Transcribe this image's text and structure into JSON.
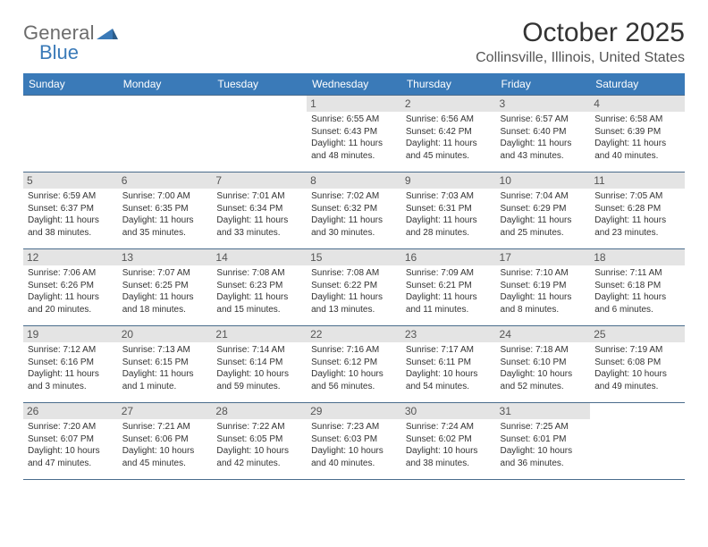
{
  "brand": {
    "word1": "General",
    "word2": "Blue"
  },
  "title": "October 2025",
  "location": "Collinsville, Illinois, United States",
  "style": {
    "header_bg": "#3a7ab8",
    "header_fg": "#ffffff",
    "daynum_bg": "#e4e4e4",
    "border_color": "#4a6c8c",
    "page_bg": "#ffffff",
    "title_fontsize": 30,
    "location_fontsize": 16,
    "dayhead_fontsize": 12,
    "body_fontsize": 10,
    "brand_gray": "#6c6c6c",
    "brand_blue": "#3a7ab8"
  },
  "day_headers": [
    "Sunday",
    "Monday",
    "Tuesday",
    "Wednesday",
    "Thursday",
    "Friday",
    "Saturday"
  ],
  "weeks": [
    [
      {
        "n": "",
        "lines": []
      },
      {
        "n": "",
        "lines": []
      },
      {
        "n": "",
        "lines": []
      },
      {
        "n": "1",
        "lines": [
          "Sunrise: 6:55 AM",
          "Sunset: 6:43 PM",
          "Daylight: 11 hours",
          "and 48 minutes."
        ]
      },
      {
        "n": "2",
        "lines": [
          "Sunrise: 6:56 AM",
          "Sunset: 6:42 PM",
          "Daylight: 11 hours",
          "and 45 minutes."
        ]
      },
      {
        "n": "3",
        "lines": [
          "Sunrise: 6:57 AM",
          "Sunset: 6:40 PM",
          "Daylight: 11 hours",
          "and 43 minutes."
        ]
      },
      {
        "n": "4",
        "lines": [
          "Sunrise: 6:58 AM",
          "Sunset: 6:39 PM",
          "Daylight: 11 hours",
          "and 40 minutes."
        ]
      }
    ],
    [
      {
        "n": "5",
        "lines": [
          "Sunrise: 6:59 AM",
          "Sunset: 6:37 PM",
          "Daylight: 11 hours",
          "and 38 minutes."
        ]
      },
      {
        "n": "6",
        "lines": [
          "Sunrise: 7:00 AM",
          "Sunset: 6:35 PM",
          "Daylight: 11 hours",
          "and 35 minutes."
        ]
      },
      {
        "n": "7",
        "lines": [
          "Sunrise: 7:01 AM",
          "Sunset: 6:34 PM",
          "Daylight: 11 hours",
          "and 33 minutes."
        ]
      },
      {
        "n": "8",
        "lines": [
          "Sunrise: 7:02 AM",
          "Sunset: 6:32 PM",
          "Daylight: 11 hours",
          "and 30 minutes."
        ]
      },
      {
        "n": "9",
        "lines": [
          "Sunrise: 7:03 AM",
          "Sunset: 6:31 PM",
          "Daylight: 11 hours",
          "and 28 minutes."
        ]
      },
      {
        "n": "10",
        "lines": [
          "Sunrise: 7:04 AM",
          "Sunset: 6:29 PM",
          "Daylight: 11 hours",
          "and 25 minutes."
        ]
      },
      {
        "n": "11",
        "lines": [
          "Sunrise: 7:05 AM",
          "Sunset: 6:28 PM",
          "Daylight: 11 hours",
          "and 23 minutes."
        ]
      }
    ],
    [
      {
        "n": "12",
        "lines": [
          "Sunrise: 7:06 AM",
          "Sunset: 6:26 PM",
          "Daylight: 11 hours",
          "and 20 minutes."
        ]
      },
      {
        "n": "13",
        "lines": [
          "Sunrise: 7:07 AM",
          "Sunset: 6:25 PM",
          "Daylight: 11 hours",
          "and 18 minutes."
        ]
      },
      {
        "n": "14",
        "lines": [
          "Sunrise: 7:08 AM",
          "Sunset: 6:23 PM",
          "Daylight: 11 hours",
          "and 15 minutes."
        ]
      },
      {
        "n": "15",
        "lines": [
          "Sunrise: 7:08 AM",
          "Sunset: 6:22 PM",
          "Daylight: 11 hours",
          "and 13 minutes."
        ]
      },
      {
        "n": "16",
        "lines": [
          "Sunrise: 7:09 AM",
          "Sunset: 6:21 PM",
          "Daylight: 11 hours",
          "and 11 minutes."
        ]
      },
      {
        "n": "17",
        "lines": [
          "Sunrise: 7:10 AM",
          "Sunset: 6:19 PM",
          "Daylight: 11 hours",
          "and 8 minutes."
        ]
      },
      {
        "n": "18",
        "lines": [
          "Sunrise: 7:11 AM",
          "Sunset: 6:18 PM",
          "Daylight: 11 hours",
          "and 6 minutes."
        ]
      }
    ],
    [
      {
        "n": "19",
        "lines": [
          "Sunrise: 7:12 AM",
          "Sunset: 6:16 PM",
          "Daylight: 11 hours",
          "and 3 minutes."
        ]
      },
      {
        "n": "20",
        "lines": [
          "Sunrise: 7:13 AM",
          "Sunset: 6:15 PM",
          "Daylight: 11 hours",
          "and 1 minute."
        ]
      },
      {
        "n": "21",
        "lines": [
          "Sunrise: 7:14 AM",
          "Sunset: 6:14 PM",
          "Daylight: 10 hours",
          "and 59 minutes."
        ]
      },
      {
        "n": "22",
        "lines": [
          "Sunrise: 7:16 AM",
          "Sunset: 6:12 PM",
          "Daylight: 10 hours",
          "and 56 minutes."
        ]
      },
      {
        "n": "23",
        "lines": [
          "Sunrise: 7:17 AM",
          "Sunset: 6:11 PM",
          "Daylight: 10 hours",
          "and 54 minutes."
        ]
      },
      {
        "n": "24",
        "lines": [
          "Sunrise: 7:18 AM",
          "Sunset: 6:10 PM",
          "Daylight: 10 hours",
          "and 52 minutes."
        ]
      },
      {
        "n": "25",
        "lines": [
          "Sunrise: 7:19 AM",
          "Sunset: 6:08 PM",
          "Daylight: 10 hours",
          "and 49 minutes."
        ]
      }
    ],
    [
      {
        "n": "26",
        "lines": [
          "Sunrise: 7:20 AM",
          "Sunset: 6:07 PM",
          "Daylight: 10 hours",
          "and 47 minutes."
        ]
      },
      {
        "n": "27",
        "lines": [
          "Sunrise: 7:21 AM",
          "Sunset: 6:06 PM",
          "Daylight: 10 hours",
          "and 45 minutes."
        ]
      },
      {
        "n": "28",
        "lines": [
          "Sunrise: 7:22 AM",
          "Sunset: 6:05 PM",
          "Daylight: 10 hours",
          "and 42 minutes."
        ]
      },
      {
        "n": "29",
        "lines": [
          "Sunrise: 7:23 AM",
          "Sunset: 6:03 PM",
          "Daylight: 10 hours",
          "and 40 minutes."
        ]
      },
      {
        "n": "30",
        "lines": [
          "Sunrise: 7:24 AM",
          "Sunset: 6:02 PM",
          "Daylight: 10 hours",
          "and 38 minutes."
        ]
      },
      {
        "n": "31",
        "lines": [
          "Sunrise: 7:25 AM",
          "Sunset: 6:01 PM",
          "Daylight: 10 hours",
          "and 36 minutes."
        ]
      },
      {
        "n": "",
        "lines": []
      }
    ]
  ]
}
